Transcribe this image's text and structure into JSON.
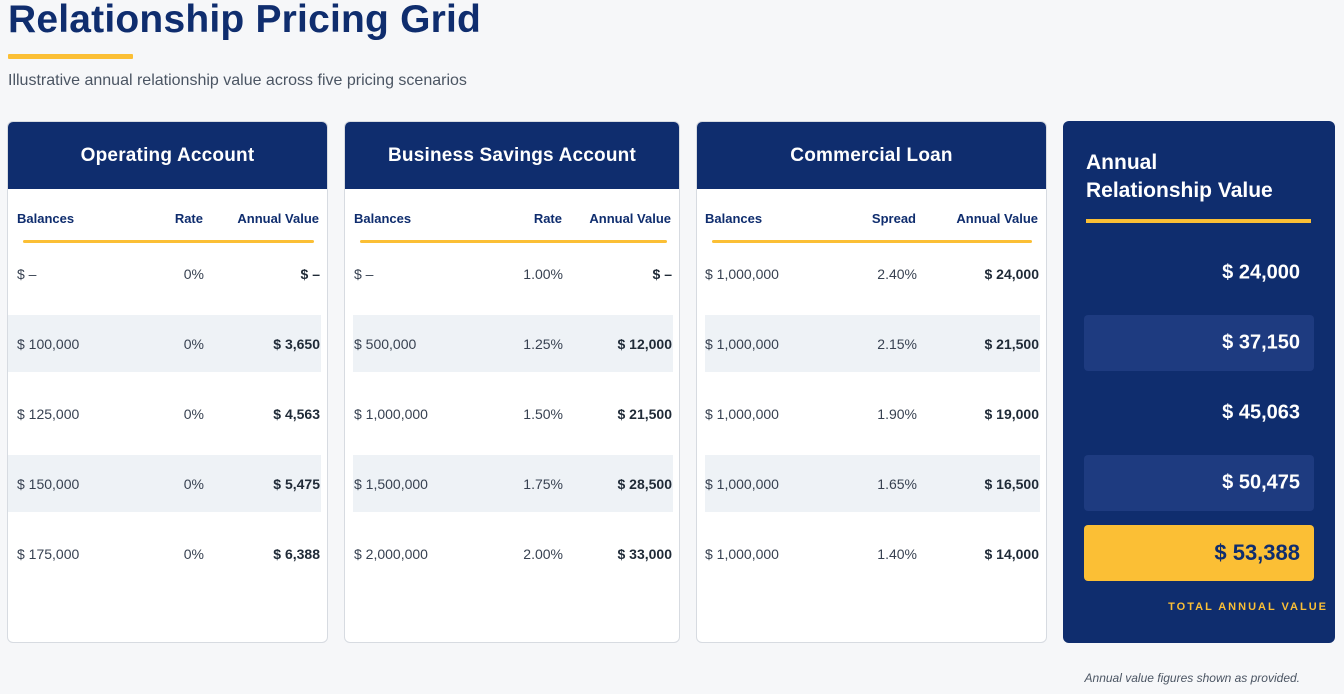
{
  "title": "Relationship Pricing Grid",
  "subtitle": "Illustrative annual relationship value across five pricing scenarios",
  "footnote": "Annual value figures shown as provided.",
  "colors": {
    "navy": "#0f2d6e",
    "accent": "#fbbf35",
    "shaded_row": "#eef2f6"
  },
  "cards": [
    {
      "title": "Operating Account",
      "headers": [
        "Balances",
        "Rate",
        "Annual Value"
      ],
      "rows": [
        [
          "$ –",
          "0%",
          "$ –"
        ],
        [
          "$ 100,000",
          "0%",
          "$ 3,650"
        ],
        [
          "$ 125,000",
          "0%",
          "$ 4,563"
        ],
        [
          "$ 150,000",
          "0%",
          "$ 5,475"
        ],
        [
          "$ 175,000",
          "0%",
          "$ 6,388"
        ]
      ]
    },
    {
      "title": "Business Savings Account",
      "headers": [
        "Balances",
        "Rate",
        "Annual Value"
      ],
      "rows": [
        [
          "$ –",
          "1.00%",
          "$ –"
        ],
        [
          "$ 500,000",
          "1.25%",
          "$ 12,000"
        ],
        [
          "$ 1,000,000",
          "1.50%",
          "$ 21,500"
        ],
        [
          "$ 1,500,000",
          "1.75%",
          "$ 28,500"
        ],
        [
          "$ 2,000,000",
          "2.00%",
          "$ 33,000"
        ]
      ]
    },
    {
      "title": "Commercial Loan",
      "headers": [
        "Balances",
        "Spread",
        "Annual Value"
      ],
      "rows": [
        [
          "$ 1,000,000",
          "2.40%",
          "$ 24,000"
        ],
        [
          "$ 1,000,000",
          "2.15%",
          "$ 21,500"
        ],
        [
          "$ 1,000,000",
          "1.90%",
          "$ 19,000"
        ],
        [
          "$ 1,000,000",
          "1.65%",
          "$ 16,500"
        ],
        [
          "$ 1,000,000",
          "1.40%",
          "$ 14,000"
        ]
      ]
    }
  ],
  "summary": {
    "title_line1": "Annual",
    "title_line2": "Relationship Value",
    "values": [
      "$ 24,000",
      "$ 37,150",
      "$ 45,063",
      "$ 50,475",
      "$ 53,388"
    ],
    "total_label": "TOTAL ANNUAL VALUE"
  }
}
